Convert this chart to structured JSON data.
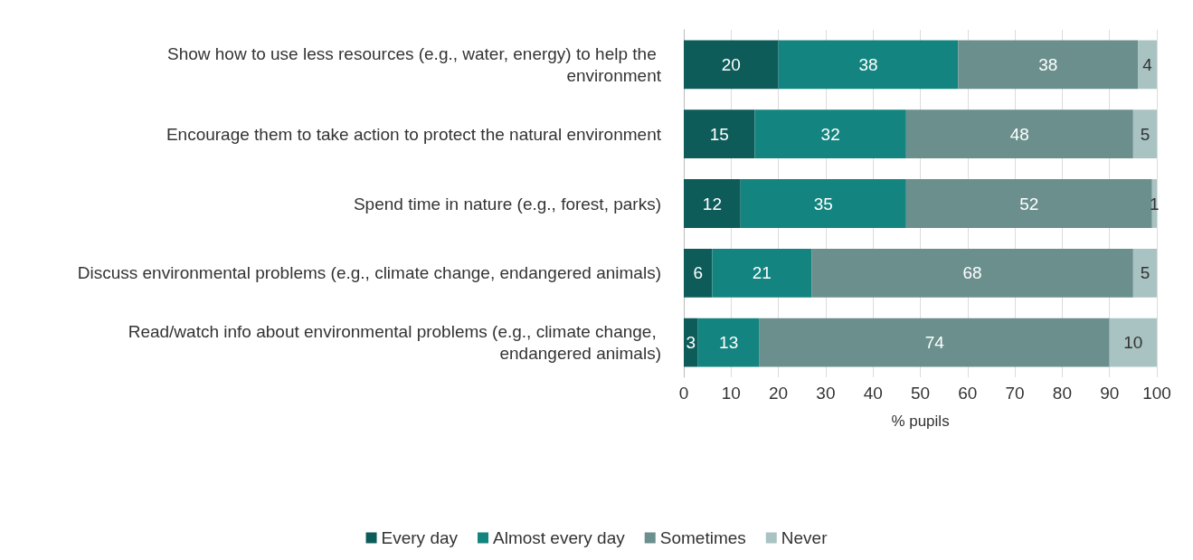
{
  "chart_data": {
    "type": "bar",
    "orientation": "horizontal",
    "stacked": true,
    "data_labels": true,
    "grid": "x",
    "legend": "bottom",
    "xlabel": "% pupils",
    "xlim": [
      0,
      100
    ],
    "xticks": [
      0,
      10,
      20,
      30,
      40,
      50,
      60,
      70,
      80,
      90,
      100
    ],
    "categories": [
      "Show how to use less resources (e.g., water, energy) to help the environment",
      "Encourage them to take action to protect the natural environment",
      "Spend time in nature (e.g., forest, parks)",
      "Discuss environmental problems (e.g., climate change, endangered animals)",
      "Read/watch info about environmental problems (e.g., climate change, endangered animals)"
    ],
    "series": [
      {
        "name": "Every day",
        "color": "#0d5c5a",
        "values": [
          20,
          15,
          12,
          6,
          3
        ]
      },
      {
        "name": "Almost every day",
        "color": "#13847f",
        "values": [
          38,
          32,
          35,
          21,
          13
        ]
      },
      {
        "name": "Sometimes",
        "color": "#6a8f8c",
        "values": [
          38,
          48,
          52,
          68,
          74
        ]
      },
      {
        "name": "Never",
        "color": "#a8c3c2",
        "values": [
          4,
          5,
          1,
          5,
          10
        ]
      }
    ]
  }
}
